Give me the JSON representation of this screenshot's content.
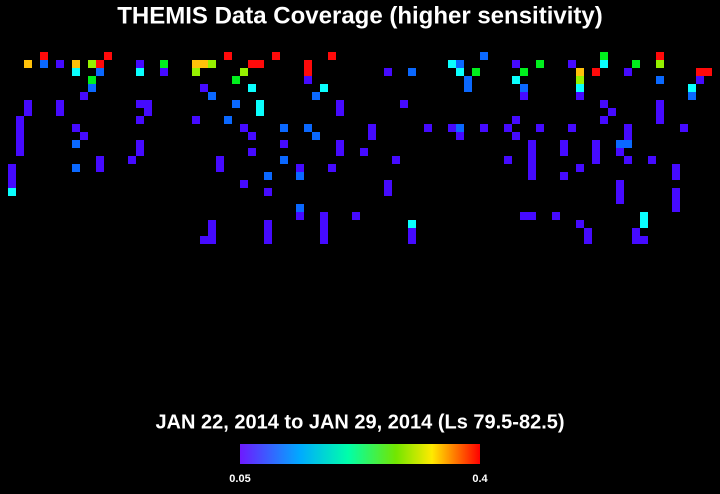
{
  "chart_data": {
    "type": "heatmap",
    "title": "THEMIS Data Coverage (higher sensitivity)",
    "subtitle": "JAN 22, 2014 to JAN 29, 2014 (Ls 79.5-82.5)",
    "clim": [
      0.05,
      0.4
    ],
    "cticks": [
      0.05,
      0.4
    ],
    "rows": [
      {
        "row": 0,
        "cols": [
          5,
          13,
          28,
          34,
          41,
          60,
          75,
          82
        ],
        "values": [
          0.4,
          0.4,
          0.4,
          0.4,
          0.4,
          0.11,
          0.23,
          0.4
        ]
      },
      {
        "row": 1,
        "cols": [
          3,
          5,
          7,
          9,
          11,
          12,
          17,
          20,
          24,
          25,
          26,
          31,
          32,
          38,
          56,
          57,
          64,
          67,
          71,
          75,
          79,
          82
        ],
        "values": [
          0.34,
          0.11,
          0.06,
          0.34,
          0.29,
          0.4,
          0.06,
          0.23,
          0.34,
          0.34,
          0.29,
          0.4,
          0.4,
          0.4,
          0.16,
          0.11,
          0.06,
          0.23,
          0.06,
          0.16,
          0.23,
          0.29
        ]
      },
      {
        "row": 2,
        "cols": [
          9,
          12,
          17,
          20,
          24,
          30,
          38,
          48,
          51,
          57,
          59,
          65,
          72,
          74,
          78,
          87,
          88
        ],
        "values": [
          0.16,
          0.11,
          0.16,
          0.06,
          0.29,
          0.29,
          0.4,
          0.06,
          0.11,
          0.16,
          0.23,
          0.23,
          0.34,
          0.4,
          0.06,
          0.4,
          0.4
        ]
      },
      {
        "row": 3,
        "cols": [
          11,
          29,
          38,
          58,
          64,
          72,
          82,
          87
        ],
        "values": [
          0.23,
          0.23,
          0.06,
          0.11,
          0.16,
          0.29,
          0.11,
          0.06
        ]
      },
      {
        "row": 4,
        "cols": [
          11,
          25,
          31,
          40,
          58,
          65,
          72,
          86
        ],
        "values": [
          0.11,
          0.06,
          0.16,
          0.16,
          0.11,
          0.11,
          0.16,
          0.16
        ]
      },
      {
        "row": 5,
        "cols": [
          10,
          26,
          39,
          65,
          72,
          86
        ],
        "values": [
          0.06,
          0.11,
          0.11,
          0.06,
          0.06,
          0.11
        ]
      },
      {
        "row": 6,
        "cols": [
          3,
          7,
          17,
          18,
          29,
          32,
          42,
          50,
          75,
          82
        ],
        "values": [
          0.06,
          0.06,
          0.06,
          0.06,
          0.11,
          0.16,
          0.06,
          0.06,
          0.06,
          0.06
        ]
      },
      {
        "row": 7,
        "cols": [
          3,
          7,
          18,
          32,
          42,
          76,
          82
        ],
        "values": [
          0.06,
          0.06,
          0.06,
          0.16,
          0.06,
          0.06,
          0.06
        ]
      },
      {
        "row": 8,
        "cols": [
          2,
          17,
          24,
          28,
          64,
          75,
          82
        ],
        "values": [
          0.06,
          0.06,
          0.06,
          0.11,
          0.06,
          0.06,
          0.06
        ]
      },
      {
        "row": 9,
        "cols": [
          2,
          9,
          30,
          35,
          38,
          46,
          53,
          56,
          57,
          60,
          63,
          67,
          71,
          78,
          85
        ],
        "values": [
          0.06,
          0.06,
          0.06,
          0.11,
          0.11,
          0.06,
          0.06,
          0.06,
          0.11,
          0.06,
          0.06,
          0.06,
          0.06,
          0.06,
          0.06
        ]
      },
      {
        "row": 10,
        "cols": [
          2,
          10,
          31,
          39,
          46,
          57,
          64,
          78
        ],
        "values": [
          0.06,
          0.06,
          0.06,
          0.11,
          0.06,
          0.06,
          0.06,
          0.06
        ]
      },
      {
        "row": 11,
        "cols": [
          2,
          9,
          17,
          35,
          42,
          66,
          70,
          74,
          77,
          78
        ],
        "values": [
          0.06,
          0.11,
          0.06,
          0.06,
          0.06,
          0.06,
          0.06,
          0.06,
          0.11,
          0.11
        ]
      },
      {
        "row": 12,
        "cols": [
          2,
          17,
          31,
          42,
          45,
          66,
          70,
          74,
          77
        ],
        "values": [
          0.06,
          0.06,
          0.06,
          0.06,
          0.06,
          0.06,
          0.06,
          0.06,
          0.06
        ]
      },
      {
        "row": 13,
        "cols": [
          12,
          16,
          27,
          35,
          49,
          63,
          66,
          74,
          78,
          81
        ],
        "values": [
          0.06,
          0.06,
          0.06,
          0.11,
          0.06,
          0.06,
          0.06,
          0.06,
          0.06,
          0.06
        ]
      },
      {
        "row": 14,
        "cols": [
          1,
          9,
          12,
          27,
          37,
          41,
          66,
          72,
          84
        ],
        "values": [
          0.06,
          0.11,
          0.06,
          0.06,
          0.06,
          0.06,
          0.06,
          0.06,
          0.06
        ]
      },
      {
        "row": 15,
        "cols": [
          1,
          33,
          37,
          66,
          70,
          84
        ],
        "values": [
          0.06,
          0.11,
          0.11,
          0.06,
          0.06,
          0.06
        ]
      },
      {
        "row": 16,
        "cols": [
          1,
          30,
          48,
          77
        ],
        "values": [
          0.06,
          0.06,
          0.06,
          0.06
        ]
      },
      {
        "row": 17,
        "cols": [
          1,
          33,
          48,
          77,
          84
        ],
        "values": [
          0.16,
          0.06,
          0.06,
          0.06,
          0.06
        ]
      },
      {
        "row": 18,
        "cols": [
          77,
          84
        ],
        "values": [
          0.06,
          0.06
        ]
      },
      {
        "row": 19,
        "cols": [
          37,
          84
        ],
        "values": [
          0.11,
          0.06
        ]
      },
      {
        "row": 20,
        "cols": [
          37,
          40,
          44,
          65,
          66,
          69,
          80
        ],
        "values": [
          0.06,
          0.06,
          0.06,
          0.06,
          0.06,
          0.06,
          0.16
        ]
      },
      {
        "row": 21,
        "cols": [
          26,
          33,
          40,
          51,
          72,
          80
        ],
        "values": [
          0.06,
          0.06,
          0.06,
          0.16,
          0.06,
          0.16
        ]
      },
      {
        "row": 22,
        "cols": [
          26,
          33,
          40,
          51,
          73,
          79
        ],
        "values": [
          0.06,
          0.06,
          0.06,
          0.06,
          0.06,
          0.06
        ]
      },
      {
        "row": 23,
        "cols": [
          25,
          26,
          33,
          40,
          51,
          73,
          79,
          80
        ],
        "values": [
          0.06,
          0.06,
          0.06,
          0.06,
          0.06,
          0.06,
          0.06,
          0.06
        ]
      }
    ]
  }
}
